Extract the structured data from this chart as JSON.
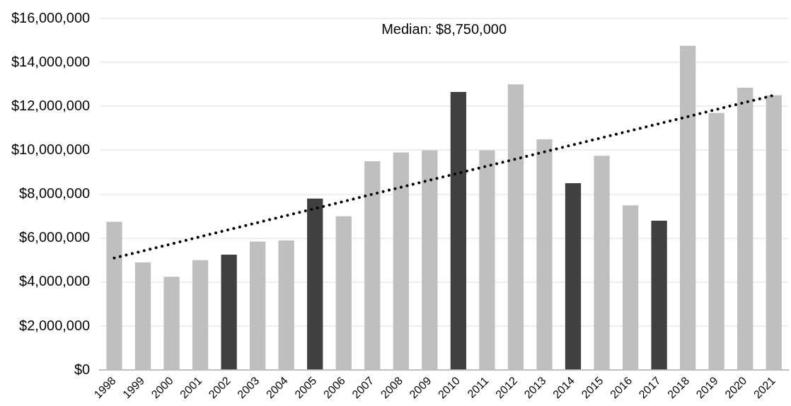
{
  "chart_data": {
    "type": "bar",
    "categories": [
      "1998",
      "1999",
      "2000",
      "2001",
      "2002",
      "2003",
      "2004",
      "2005",
      "2006",
      "2007",
      "2008",
      "2009",
      "2010",
      "2011",
      "2012",
      "2013",
      "2014",
      "2015",
      "2016",
      "2017",
      "2018",
      "2019",
      "2020",
      "2021"
    ],
    "series": [
      {
        "colors": [
          "#bfbfbf",
          "#bfbfbf",
          "#bfbfbf",
          "#bfbfbf",
          "#404040",
          "#bfbfbf",
          "#bfbfbf",
          "#404040",
          "#bfbfbf",
          "#bfbfbf",
          "#bfbfbf",
          "#bfbfbf",
          "#404040",
          "#bfbfbf",
          "#bfbfbf",
          "#bfbfbf",
          "#404040",
          "#bfbfbf",
          "#bfbfbf",
          "#404040",
          "#bfbfbf",
          "#bfbfbf",
          "#bfbfbf",
          "#bfbfbf"
        ],
        "values": [
          6750000,
          4900000,
          4250000,
          5000000,
          5250000,
          5850000,
          5900000,
          7800000,
          7000000,
          9500000,
          9900000,
          10000000,
          12650000,
          10000000,
          13000000,
          10500000,
          8500000,
          9750000,
          7500000,
          6800000,
          14750000,
          11700000,
          12850000,
          12500000
        ]
      },
      {
        "type": "line",
        "color": "#000000",
        "line_style": "dotted",
        "values": [
          5100000,
          5420000,
          5740000,
          6070000,
          6390000,
          6710000,
          7030000,
          7350000,
          7670000,
          8000000,
          8320000,
          8640000,
          8960000,
          9280000,
          9600000,
          9930000,
          10250000,
          10570000,
          10890000,
          11210000,
          11530000,
          11860000,
          12180000,
          12500000
        ]
      }
    ],
    "ylim": [
      0,
      16000000
    ],
    "yticks": [
      {
        "value": 0,
        "label": "$0"
      },
      {
        "value": 2000000,
        "label": "$2,000,000"
      },
      {
        "value": 4000000,
        "label": "$4,000,000"
      },
      {
        "value": 6000000,
        "label": "$6,000,000"
      },
      {
        "value": 8000000,
        "label": "$8,000,000"
      },
      {
        "value": 10000000,
        "label": "$10,000,000"
      },
      {
        "value": 12000000,
        "label": "$12,000,000"
      },
      {
        "value": 14000000,
        "label": "$14,000,000"
      },
      {
        "value": 16000000,
        "label": "$16,000,000"
      }
    ],
    "grid": "y",
    "legend": false,
    "marker": "none",
    "annotations": [
      "Median: $8,750,000"
    ]
  }
}
